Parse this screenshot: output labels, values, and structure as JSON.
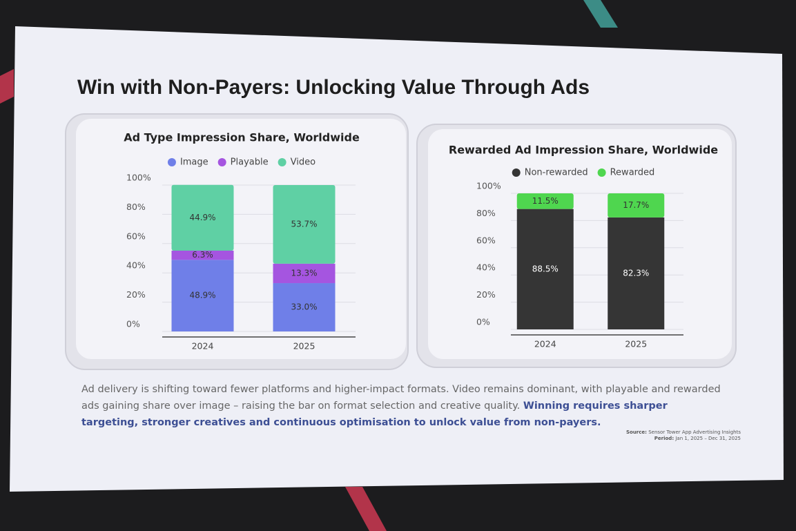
{
  "title": "Win with Non-Payers: Unlocking Value Through Ads",
  "chart_data": [
    {
      "type": "bar",
      "stacked": true,
      "title": "Ad Type Impression Share, Worldwide",
      "categories": [
        "2024",
        "2025"
      ],
      "series": [
        {
          "name": "Image",
          "color": "#6f7fe8",
          "values": [
            48.9,
            33.0
          ],
          "value_labels": [
            "48.9%",
            "33.0%"
          ]
        },
        {
          "name": "Playable",
          "color": "#a555e0",
          "values": [
            6.3,
            13.3
          ],
          "value_labels": [
            "6.3%",
            "13.3%"
          ]
        },
        {
          "name": "Video",
          "color": "#5fd0a4",
          "values": [
            44.9,
            53.7
          ],
          "value_labels": [
            "44.9%",
            "53.7%"
          ]
        }
      ],
      "ylim": [
        0,
        100
      ],
      "yticks": [
        {
          "value": 0,
          "label": "0%"
        },
        {
          "value": 20,
          "label": "20%"
        },
        {
          "value": 40,
          "label": "40%"
        },
        {
          "value": 60,
          "label": "60%"
        },
        {
          "value": 80,
          "label": "80%"
        },
        {
          "value": 100,
          "label": "100%"
        }
      ],
      "grid": true
    },
    {
      "type": "bar",
      "stacked": true,
      "title": "Rewarded Ad Impression Share, Worldwide",
      "categories": [
        "2024",
        "2025"
      ],
      "series": [
        {
          "name": "Non-rewarded",
          "color": "#353535",
          "values": [
            88.5,
            82.3
          ],
          "value_labels": [
            "88.5%",
            "82.3%"
          ]
        },
        {
          "name": "Rewarded",
          "color": "#4fd64f",
          "values": [
            11.5,
            17.7
          ],
          "value_labels": [
            "11.5%",
            "17.7%"
          ]
        }
      ],
      "ylim": [
        0,
        100
      ],
      "yticks": [
        {
          "value": 0,
          "label": "0%"
        },
        {
          "value": 20,
          "label": "20%"
        },
        {
          "value": 40,
          "label": "40%"
        },
        {
          "value": 60,
          "label": "60%"
        },
        {
          "value": 80,
          "label": "80%"
        },
        {
          "value": 100,
          "label": "100%"
        }
      ],
      "grid": true
    }
  ],
  "body": {
    "text": "Ad delivery is shifting toward fewer platforms and higher-impact formats. Video remains dominant, with playable and rewarded ads gaining share over image – raising the bar on format selection and creative quality.",
    "highlight": "Winning requires sharper targeting, stronger creatives and continuous optimisation to unlock value from non-payers."
  },
  "source": {
    "source_label": "Source:",
    "source": "Sensor Tower App Advertising Insights",
    "period_label": "Period:",
    "period": "Jan 1, 2025 – Dec 31, 2025"
  }
}
